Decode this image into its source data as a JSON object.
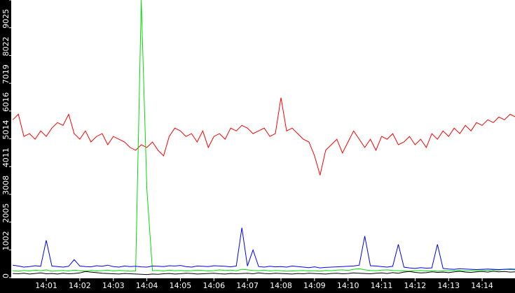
{
  "chart_data": {
    "type": "line",
    "title": "",
    "xlabel": "",
    "ylabel": "",
    "ylim": [
      0,
      10028
    ],
    "x_start": "14:00:00",
    "x_interval_s": 10,
    "x_range": [
      "14:00",
      "14:15"
    ],
    "grid": false,
    "y_ticks": [
      "0",
      "1002",
      "2005",
      "3008",
      "4011",
      "5014",
      "6016",
      "7019",
      "8022",
      "9025",
      "10028"
    ],
    "x_ticks": [
      "14:01",
      "14:02",
      "14:03",
      "14:04",
      "14:05",
      "14:06",
      "14:07",
      "14:08",
      "14:09",
      "14:10",
      "14:11",
      "14:12",
      "14:13",
      "14:14"
    ],
    "series": [
      {
        "color": "#ff0000",
        "values": [
          5700,
          5900,
          5100,
          5200,
          5000,
          5300,
          5100,
          5400,
          5600,
          5500,
          5900,
          5200,
          5000,
          5300,
          4900,
          5100,
          5200,
          4800,
          5100,
          5000,
          4900,
          4700,
          4600,
          4800,
          4700,
          4900,
          4600,
          4400,
          5100,
          5400,
          5300,
          5100,
          5200,
          4900,
          5300,
          4700,
          5100,
          5200,
          5000,
          5400,
          5300,
          5500,
          5400,
          5200,
          5300,
          5400,
          5100,
          5200,
          6500,
          5300,
          5400,
          5200,
          5000,
          4900,
          4400,
          3700,
          4600,
          4800,
          5000,
          4500,
          4900,
          5300,
          5000,
          4700,
          5000,
          4600,
          5100,
          5000,
          5200,
          4800,
          4900,
          5100,
          4800,
          5000,
          4700,
          5200,
          5000,
          5300,
          5100,
          5400,
          5200,
          5500,
          5300,
          5600,
          5500,
          5700,
          5600,
          5800,
          5700,
          5900,
          5800
        ]
      },
      {
        "color": "#00e000",
        "values": [
          250,
          230,
          260,
          240,
          270,
          250,
          280,
          230,
          250,
          260,
          240,
          270,
          250,
          230,
          260,
          240,
          250,
          270,
          240,
          260,
          250,
          230,
          240,
          10028,
          3200,
          250,
          260,
          240,
          270,
          250,
          260,
          240,
          250,
          270,
          260,
          240,
          250,
          280,
          260,
          270,
          250,
          300,
          280,
          260,
          250,
          270,
          240,
          260,
          250,
          230,
          240,
          250,
          260,
          240,
          250,
          230,
          260,
          250,
          270,
          280,
          260,
          300,
          320,
          280,
          260,
          250,
          270,
          280,
          260,
          250,
          240,
          230,
          250,
          260,
          240,
          250,
          230,
          240,
          250,
          260,
          250,
          240,
          260,
          250,
          270,
          260,
          280,
          270,
          300,
          290,
          280
        ]
      },
      {
        "color": "#0000ff",
        "values": [
          450,
          420,
          380,
          400,
          430,
          410,
          1350,
          420,
          400,
          380,
          410,
          650,
          420,
          400,
          390,
          430,
          410,
          450,
          400,
          380,
          420,
          400,
          410,
          390,
          380,
          420,
          410,
          400,
          430,
          420,
          440,
          400,
          380,
          420,
          410,
          400,
          430,
          420,
          410,
          390,
          420,
          1800,
          420,
          1000,
          400,
          380,
          410,
          390,
          400,
          380,
          420,
          400,
          380,
          360,
          390,
          350,
          370,
          380,
          390,
          400,
          410,
          420,
          450,
          1500,
          430,
          420,
          400,
          380,
          410,
          1200,
          380,
          350,
          330,
          360,
          340,
          350,
          1200,
          330,
          310,
          300,
          320,
          310,
          300,
          290,
          300,
          310,
          300,
          290,
          300,
          310,
          300
        ]
      },
      {
        "color": "#000000",
        "values": [
          150,
          140,
          160,
          130,
          150,
          170,
          140,
          150,
          130,
          160,
          140,
          150,
          170,
          220,
          200,
          180,
          160,
          150,
          140,
          130,
          150,
          140,
          130,
          120,
          110,
          130,
          120,
          140,
          150,
          130,
          140,
          160,
          150,
          130,
          140,
          150,
          160,
          140,
          130,
          150,
          140,
          150,
          160,
          140,
          170,
          150,
          140,
          160,
          150,
          140,
          130,
          150,
          140,
          160,
          150,
          140,
          130,
          150,
          160,
          140,
          150,
          170,
          160,
          150,
          140,
          160,
          170,
          150,
          180,
          160,
          200,
          220,
          190,
          170,
          180,
          210,
          190,
          200,
          180,
          210,
          230,
          200,
          190,
          210,
          220,
          200,
          230,
          210,
          220,
          200,
          210
        ]
      }
    ]
  }
}
